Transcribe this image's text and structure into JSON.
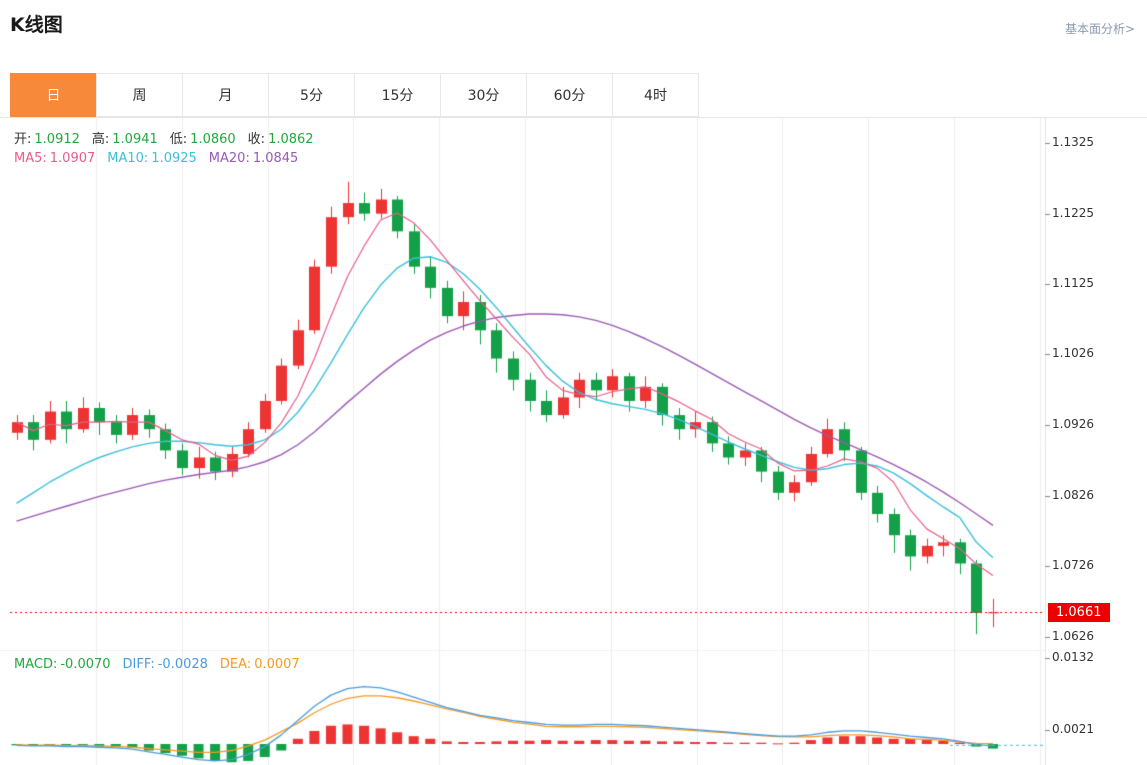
{
  "header": {
    "title": "K线图",
    "link": "基本面分析>"
  },
  "tabs": {
    "items": [
      "日",
      "周",
      "月",
      "5分",
      "15分",
      "30分",
      "60分",
      "4时"
    ],
    "active_index": 0,
    "active_bg": "#f7893b"
  },
  "legend": {
    "ohlc": [
      {
        "label": "开:",
        "value": "1.0912"
      },
      {
        "label": "高:",
        "value": "1.0941"
      },
      {
        "label": "低:",
        "value": "1.0860"
      },
      {
        "label": "收:",
        "value": "1.0862"
      }
    ],
    "ohlc_value_color": "#21a93c",
    "ma": [
      {
        "label": "MA5:",
        "value": "1.0907",
        "color": "#e85d8a"
      },
      {
        "label": "MA10:",
        "value": "1.0925",
        "color": "#3bc0dc"
      },
      {
        "label": "MA20:",
        "value": "1.0845",
        "color": "#9b59b6"
      }
    ],
    "macd": [
      {
        "label": "MACD:",
        "value": "-0.0070",
        "color": "#21a93c"
      },
      {
        "label": "DIFF:",
        "value": "-0.0028",
        "color": "#4a9ce0"
      },
      {
        "label": "DEA:",
        "value": "0.0007",
        "color": "#f59a23"
      }
    ]
  },
  "axis": {
    "price_ticks": [
      "1.1325",
      "1.1225",
      "1.1125",
      "1.1026",
      "1.0926",
      "1.0826",
      "1.0726",
      "1.0626"
    ],
    "macd_ticks": [
      "0.0132",
      "0.0021"
    ],
    "last_price": "1.0661",
    "last_price_bg": "#ee0000"
  },
  "chart_data": {
    "type": "candlestick",
    "title": "K线图",
    "panels": [
      "price",
      "macd"
    ],
    "price_axis_ticks": [
      1.1325,
      1.1225,
      1.1125,
      1.1026,
      1.0926,
      1.0826,
      1.0726,
      1.0626
    ],
    "macd_axis_ticks": [
      0.0132,
      0.0021
    ],
    "last_price": 1.0661,
    "candles_ohlc": [
      [
        1.0915,
        1.094,
        1.0905,
        1.093
      ],
      [
        1.093,
        1.094,
        1.089,
        1.0905
      ],
      [
        1.0905,
        1.096,
        1.09,
        1.0945
      ],
      [
        1.0945,
        1.096,
        1.09,
        1.092
      ],
      [
        1.092,
        1.0965,
        1.0915,
        1.095
      ],
      [
        1.095,
        1.0958,
        1.0912,
        1.093
      ],
      [
        1.093,
        1.094,
        1.09,
        1.0912
      ],
      [
        1.0912,
        1.095,
        1.0905,
        1.094
      ],
      [
        1.094,
        1.0948,
        1.0908,
        1.092
      ],
      [
        1.092,
        1.0928,
        1.0878,
        1.089
      ],
      [
        1.089,
        1.09,
        1.0855,
        1.0865
      ],
      [
        1.0865,
        1.0895,
        1.085,
        1.088
      ],
      [
        1.088,
        1.0888,
        1.0848,
        1.086
      ],
      [
        1.086,
        1.0895,
        1.0852,
        1.0885
      ],
      [
        1.0885,
        1.093,
        1.088,
        1.092
      ],
      [
        1.092,
        1.097,
        1.0915,
        1.096
      ],
      [
        1.096,
        1.102,
        1.0955,
        1.101
      ],
      [
        1.101,
        1.1075,
        1.1005,
        1.106
      ],
      [
        1.106,
        1.116,
        1.1055,
        1.115
      ],
      [
        1.115,
        1.1235,
        1.114,
        1.122
      ],
      [
        1.122,
        1.127,
        1.121,
        1.124
      ],
      [
        1.124,
        1.1255,
        1.1215,
        1.1225
      ],
      [
        1.1225,
        1.126,
        1.1218,
        1.1245
      ],
      [
        1.1245,
        1.125,
        1.119,
        1.12
      ],
      [
        1.12,
        1.121,
        1.114,
        1.115
      ],
      [
        1.115,
        1.1165,
        1.1105,
        1.112
      ],
      [
        1.112,
        1.113,
        1.107,
        1.108
      ],
      [
        1.108,
        1.1115,
        1.106,
        1.11
      ],
      [
        1.11,
        1.111,
        1.104,
        1.106
      ],
      [
        1.106,
        1.107,
        1.1,
        1.102
      ],
      [
        1.102,
        1.103,
        1.0975,
        1.099
      ],
      [
        1.099,
        1.1,
        1.0945,
        1.096
      ],
      [
        1.096,
        1.0975,
        1.093,
        1.094
      ],
      [
        1.094,
        1.098,
        1.0935,
        1.0965
      ],
      [
        1.0965,
        1.1,
        1.095,
        1.099
      ],
      [
        1.099,
        1.1,
        1.096,
        1.0975
      ],
      [
        1.0975,
        1.1005,
        1.0965,
        1.0995
      ],
      [
        1.0995,
        1.1,
        1.0945,
        1.096
      ],
      [
        1.096,
        1.0995,
        1.095,
        1.098
      ],
      [
        1.098,
        1.0985,
        1.0925,
        1.094
      ],
      [
        1.094,
        1.095,
        1.0905,
        1.092
      ],
      [
        1.092,
        1.0945,
        1.0908,
        1.093
      ],
      [
        1.093,
        1.0938,
        1.0888,
        1.09
      ],
      [
        1.09,
        1.091,
        1.087,
        1.088
      ],
      [
        1.088,
        1.09,
        1.0868,
        1.089
      ],
      [
        1.089,
        1.0895,
        1.0845,
        1.086
      ],
      [
        1.086,
        1.0868,
        1.082,
        1.083
      ],
      [
        1.083,
        1.0855,
        1.0818,
        1.0845
      ],
      [
        1.0845,
        1.0895,
        1.084,
        1.0885
      ],
      [
        1.0885,
        1.0935,
        1.088,
        1.092
      ],
      [
        1.092,
        1.093,
        1.0875,
        1.089
      ],
      [
        1.089,
        1.0895,
        1.082,
        1.083
      ],
      [
        1.083,
        1.084,
        1.0788,
        1.08
      ],
      [
        1.08,
        1.0808,
        1.0745,
        1.077
      ],
      [
        1.077,
        1.0778,
        1.072,
        1.074
      ],
      [
        1.074,
        1.0765,
        1.073,
        1.0755
      ],
      [
        1.0755,
        1.077,
        1.074,
        1.076
      ],
      [
        1.076,
        1.0765,
        1.0715,
        1.073
      ],
      [
        1.073,
        1.0735,
        1.063,
        1.066
      ],
      [
        1.066,
        1.068,
        1.064,
        1.0661
      ]
    ],
    "ma5": [
      1.093,
      1.0918,
      1.0927,
      1.0925,
      1.093,
      1.093,
      1.0931,
      1.093,
      1.093,
      1.0918,
      1.0905,
      1.0899,
      1.0883,
      1.0876,
      1.0882,
      1.0901,
      1.0929,
      1.0967,
      1.102,
      1.108,
      1.1136,
      1.1179,
      1.1216,
      1.1226,
      1.1212,
      1.1188,
      1.1159,
      1.113,
      1.1102,
      1.1076,
      1.105,
      1.1026,
      1.0994,
      1.0975,
      1.0969,
      1.0966,
      1.0973,
      1.0977,
      1.098,
      1.097,
      1.0959,
      1.0946,
      1.0934,
      1.0914,
      1.0902,
      1.0892,
      1.0872,
      1.0861,
      1.0862,
      1.0868,
      1.0878,
      1.0874,
      1.0865,
      1.0845,
      1.0806,
      1.0779,
      1.0765,
      1.0751,
      1.0729,
      1.0713
    ],
    "ma10": [
      1.0815,
      1.083,
      1.0845,
      1.0858,
      1.087,
      1.088,
      1.0888,
      1.0895,
      1.09,
      1.0903,
      1.0903,
      1.0901,
      1.0898,
      1.0896,
      1.0898,
      1.0905,
      1.092,
      1.0944,
      1.0976,
      1.1014,
      1.1054,
      1.1092,
      1.1124,
      1.1148,
      1.1162,
      1.1164,
      1.1156,
      1.114,
      1.1118,
      1.1092,
      1.1064,
      1.1036,
      1.101,
      1.0988,
      1.0972,
      1.0962,
      1.0956,
      1.0952,
      1.0948,
      1.0942,
      1.0934,
      1.0924,
      1.0913,
      1.0902,
      1.0892,
      1.0883,
      1.0874,
      1.0866,
      1.0862,
      1.0864,
      1.087,
      1.0872,
      1.0868,
      1.0858,
      1.0843,
      1.0826,
      1.081,
      1.0795,
      1.076,
      1.0738
    ],
    "ma20": [
      1.079,
      1.0797,
      1.0804,
      1.0811,
      1.0818,
      1.0825,
      1.0831,
      1.0837,
      1.0843,
      1.0848,
      1.0852,
      1.0856,
      1.0859,
      1.0862,
      1.0867,
      1.0874,
      1.0884,
      1.0898,
      1.0916,
      1.0937,
      1.0958,
      1.0978,
      1.0998,
      1.1016,
      1.1032,
      1.1046,
      1.1057,
      1.1066,
      1.1073,
      1.1078,
      1.1081,
      1.1083,
      1.1083,
      1.1082,
      1.1079,
      1.1074,
      1.1067,
      1.1058,
      1.1048,
      1.1037,
      1.1025,
      1.1012,
      1.0999,
      1.0986,
      1.0973,
      1.096,
      1.0947,
      1.0934,
      1.0922,
      1.0911,
      1.0901,
      1.0891,
      1.0881,
      1.087,
      1.0858,
      1.0845,
      1.0831,
      1.0816,
      1.08,
      1.0784
    ],
    "macd": {
      "unit": 0.0001,
      "diff": [
        -2,
        -3,
        -3,
        -4,
        -4,
        -5,
        -6,
        -8,
        -12,
        -16,
        -20,
        -24,
        -26,
        -24,
        -16,
        -4,
        14,
        36,
        58,
        75,
        85,
        88,
        86,
        80,
        72,
        64,
        56,
        50,
        44,
        40,
        36,
        33,
        30,
        29,
        29,
        30,
        30,
        29,
        28,
        26,
        24,
        22,
        20,
        18,
        16,
        14,
        12,
        12,
        14,
        18,
        20,
        20,
        18,
        15,
        12,
        10,
        8,
        4,
        -1,
        -3
      ],
      "hist": [
        -2,
        -2,
        -3,
        -3,
        -4,
        -4,
        -5,
        -6,
        -10,
        -14,
        -18,
        -22,
        -26,
        -28,
        -26,
        -20,
        -10,
        8,
        20,
        28,
        30,
        28,
        24,
        18,
        12,
        8,
        4,
        3,
        3,
        4,
        5,
        5,
        6,
        5,
        5,
        6,
        6,
        5,
        5,
        4,
        4,
        3,
        3,
        2,
        2,
        2,
        1,
        2,
        6,
        10,
        12,
        12,
        10,
        8,
        8,
        6,
        5,
        2,
        -4,
        -7
      ]
    },
    "colors": {
      "up": "#ee3333",
      "down": "#13a049",
      "ma5": "#e85d8a",
      "ma10": "#3bc0dc",
      "ma20": "#9b59b6",
      "diff_line": "#4a9ce0",
      "dea_line": "#f59a23",
      "last_price_line": "#ee0000",
      "grid": "#ededed",
      "border": "#e5e5e5"
    }
  }
}
